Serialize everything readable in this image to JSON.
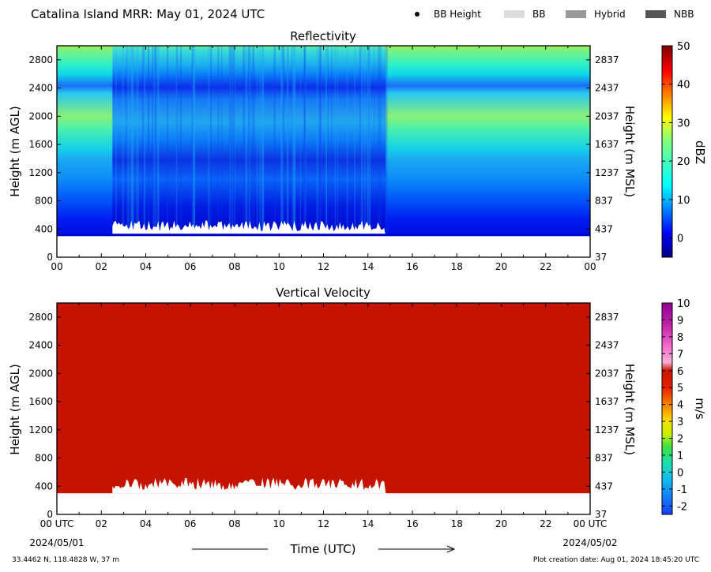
{
  "header": {
    "title": "Catalina Island MRR:  May 01, 2024 UTC",
    "legend": [
      {
        "label": "BB Height",
        "kind": "dot",
        "color": "#000000"
      },
      {
        "label": "BB",
        "kind": "swatch",
        "color": "#dddddd"
      },
      {
        "label": "Hybrid",
        "kind": "swatch",
        "color": "#999999"
      },
      {
        "label": "NBB",
        "kind": "swatch",
        "color": "#555555"
      }
    ]
  },
  "chart_data": [
    {
      "type": "heatmap",
      "title": "Reflectivity",
      "ylabel": "Height (m AGL)",
      "ylabel_right": "Height (m MSL)",
      "ylim": [
        0,
        3000
      ],
      "yticks": [
        0,
        400,
        800,
        1200,
        1600,
        2000,
        2400,
        2800
      ],
      "yticks_right": [
        "37",
        "437",
        "837",
        "1237",
        "1637",
        "2037",
        "2437",
        "2837"
      ],
      "xlim": [
        0,
        24
      ],
      "xticks": [
        "00",
        "02",
        "04",
        "06",
        "08",
        "10",
        "12",
        "14",
        "16",
        "18",
        "20",
        "22",
        "00"
      ],
      "colorbar": {
        "label": "dBZ",
        "range": [
          -5,
          50
        ],
        "ticks": [
          0,
          10,
          20,
          30,
          40,
          50
        ]
      },
      "data_range_height": [
        300,
        3000
      ],
      "precip_periods_utc": [
        [
          2.5,
          14.8
        ]
      ]
    },
    {
      "type": "heatmap",
      "title": "Vertical Velocity",
      "ylabel": "Height (m AGL)",
      "ylabel_right": "Height (m MSL)",
      "ylim": [
        0,
        3000
      ],
      "yticks": [
        0,
        400,
        800,
        1200,
        1600,
        2000,
        2400,
        2800
      ],
      "yticks_right": [
        "37",
        "437",
        "837",
        "1237",
        "1637",
        "2037",
        "2437",
        "2837"
      ],
      "xlim": [
        0,
        24
      ],
      "xticks": [
        "00 UTC",
        "02",
        "04",
        "06",
        "08",
        "10",
        "12",
        "14",
        "16",
        "18",
        "20",
        "22",
        "00 UTC"
      ],
      "xlabel": "Time (UTC)",
      "xdate_left": "2024/05/01",
      "xdate_right": "2024/05/02",
      "colorbar": {
        "label": "m/s",
        "range": [
          -2.5,
          10
        ],
        "ticks": [
          -2,
          -1,
          0,
          1,
          2,
          3,
          4,
          5,
          6,
          7,
          8,
          9,
          10
        ]
      },
      "data_range_height": [
        300,
        3000
      ],
      "fill_value_ms": 6
    }
  ],
  "footer": {
    "coords": "33.4462 N, 118.4828 W, 37 m",
    "created": "Plot creation date: Aug 01, 2024 18:45:20 UTC"
  }
}
